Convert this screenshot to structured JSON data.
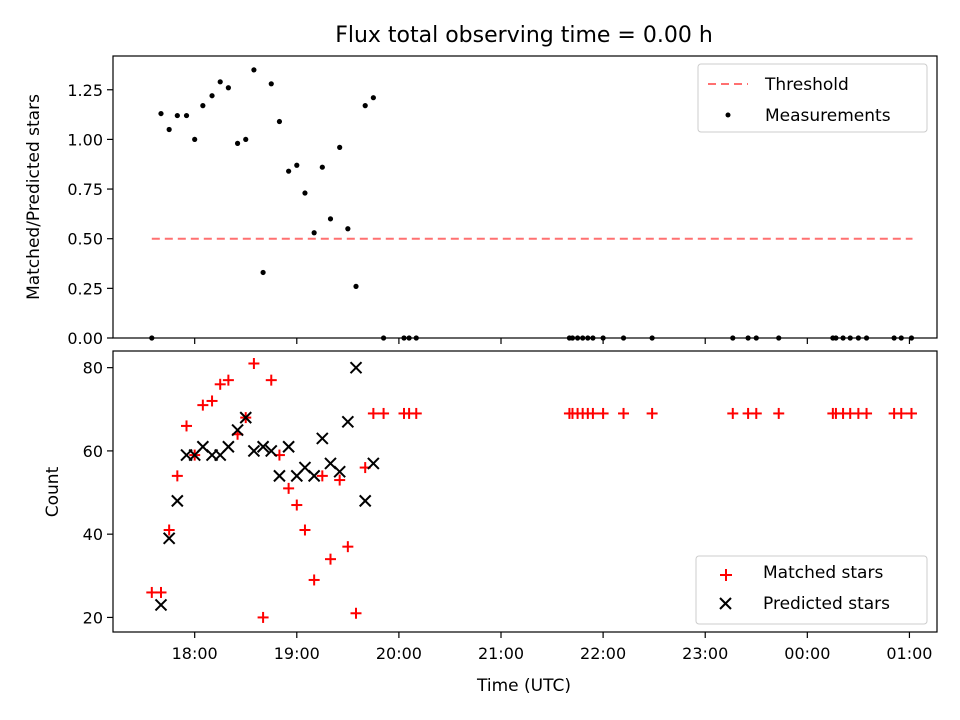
{
  "figure": {
    "title": "Flux total observing time = 0.00 h"
  },
  "chart_data": [
    {
      "type": "scatter",
      "title": "Flux total observing time = 0.00 h",
      "xlabel": "",
      "ylabel": "Matched/Predicted stars",
      "x_unit": "time (UTC), hours since 00:00 of first day",
      "xlim": [
        17.2,
        25.27
      ],
      "ylim": [
        0.0,
        1.42
      ],
      "yticks": [
        0.0,
        0.25,
        0.5,
        0.75,
        1.0,
        1.25
      ],
      "ytick_labels": [
        "0.00",
        "0.25",
        "0.50",
        "0.75",
        "1.00",
        "1.25"
      ],
      "legend": {
        "placement": "upper right",
        "entries": [
          "Threshold",
          "Measurements"
        ]
      },
      "grid": false,
      "series": [
        {
          "name": "Threshold",
          "kind": "dashed-line",
          "color": "#ff7070",
          "x": [
            17.58,
            25.03
          ],
          "y": [
            0.5,
            0.5
          ]
        },
        {
          "name": "Measurements",
          "kind": "dot",
          "color": "#000000",
          "x": [
            17.58,
            17.67,
            17.75,
            17.83,
            17.92,
            18.0,
            18.08,
            18.17,
            18.25,
            18.33,
            18.42,
            18.5,
            18.58,
            18.67,
            18.75,
            18.83,
            18.92,
            19.0,
            19.08,
            19.17,
            19.25,
            19.33,
            19.42,
            19.5,
            19.58,
            19.67,
            19.75,
            19.85,
            20.05,
            20.1,
            20.17,
            21.67,
            21.7,
            21.75,
            21.8,
            21.85,
            21.9,
            22.0,
            22.2,
            22.48,
            23.27,
            23.42,
            23.5,
            23.72,
            24.25,
            24.28,
            24.35,
            24.42,
            24.5,
            24.58,
            24.85,
            24.92,
            25.02
          ],
          "y": [
            0.0,
            1.13,
            1.05,
            1.12,
            1.12,
            1.0,
            1.17,
            1.22,
            1.29,
            1.26,
            0.98,
            1.0,
            1.35,
            0.33,
            1.28,
            1.09,
            0.84,
            0.87,
            0.73,
            0.53,
            0.86,
            0.6,
            0.96,
            0.55,
            0.26,
            1.17,
            1.21,
            0.0,
            0.0,
            0.0,
            0.0,
            0.0,
            0.0,
            0.0,
            0.0,
            0.0,
            0.0,
            0.0,
            0.0,
            0.0,
            0.0,
            0.0,
            0.0,
            0.0,
            0.0,
            0.0,
            0.0,
            0.0,
            0.0,
            0.0,
            0.0,
            0.0,
            0.0
          ]
        }
      ]
    },
    {
      "type": "scatter",
      "xlabel": "Time (UTC)",
      "ylabel": "Count",
      "x_unit": "time (UTC), hours since 00:00 of first day",
      "xlim": [
        17.2,
        25.27
      ],
      "ylim": [
        16.5,
        84.0
      ],
      "xticks": [
        18,
        19,
        20,
        21,
        22,
        23,
        24,
        25
      ],
      "xtick_labels": [
        "18:00",
        "19:00",
        "20:00",
        "21:00",
        "22:00",
        "23:00",
        "00:00",
        "01:00"
      ],
      "yticks": [
        20,
        40,
        60,
        80
      ],
      "ytick_labels": [
        "20",
        "40",
        "60",
        "80"
      ],
      "legend": {
        "placement": "lower right",
        "entries": [
          "Matched stars",
          "Predicted stars"
        ]
      },
      "grid": false,
      "series": [
        {
          "name": "Matched stars",
          "marker": "+",
          "color": "#ff0000",
          "x": [
            17.58,
            17.67,
            17.75,
            17.83,
            17.92,
            18.0,
            18.08,
            18.17,
            18.25,
            18.33,
            18.42,
            18.5,
            18.58,
            18.67,
            18.75,
            18.83,
            18.92,
            19.0,
            19.08,
            19.17,
            19.25,
            19.33,
            19.42,
            19.5,
            19.58,
            19.67,
            19.75,
            19.85,
            20.05,
            20.1,
            20.17,
            21.67,
            21.7,
            21.75,
            21.8,
            21.85,
            21.9,
            22.0,
            22.2,
            22.48,
            23.27,
            23.42,
            23.5,
            23.72,
            24.25,
            24.28,
            24.35,
            24.42,
            24.5,
            24.58,
            24.85,
            24.92,
            25.02
          ],
          "y": [
            26,
            26,
            41,
            54,
            66,
            59,
            71,
            72,
            76,
            77,
            64,
            68,
            81,
            20,
            77,
            59,
            51,
            47,
            41,
            29,
            54,
            34,
            53,
            37,
            21,
            56,
            69,
            69,
            69,
            69,
            69,
            69,
            69,
            69,
            69,
            69,
            69,
            69,
            69,
            69,
            69,
            69,
            69,
            69,
            69,
            69,
            69,
            69,
            69,
            69,
            69,
            69,
            69
          ]
        },
        {
          "name": "Predicted stars",
          "marker": "x",
          "color": "#000000",
          "x": [
            17.67,
            17.75,
            17.83,
            17.92,
            18.0,
            18.08,
            18.17,
            18.25,
            18.33,
            18.42,
            18.5,
            18.58,
            18.67,
            18.75,
            18.83,
            18.92,
            19.0,
            19.08,
            19.17,
            19.25,
            19.33,
            19.42,
            19.5,
            19.58,
            19.67,
            19.75
          ],
          "y": [
            23,
            39,
            48,
            59,
            59,
            61,
            59,
            59,
            61,
            65,
            68,
            60,
            61,
            60,
            54,
            61,
            54,
            56,
            54,
            63,
            57,
            55,
            67,
            80,
            48,
            57
          ]
        }
      ]
    }
  ]
}
